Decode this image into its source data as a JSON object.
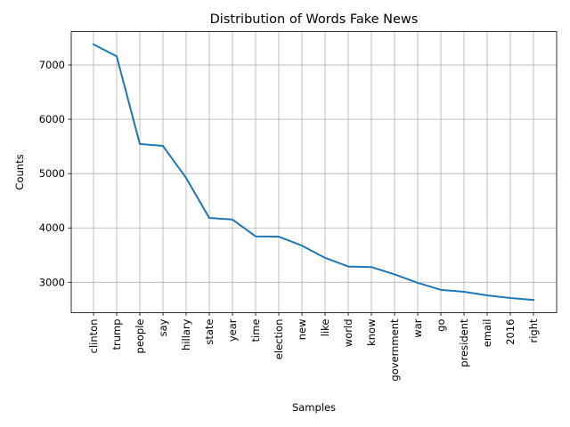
{
  "chart_data": {
    "type": "line",
    "title": "Distribution of Words Fake News",
    "xlabel": "Samples",
    "ylabel": "Counts",
    "categories": [
      "clinton",
      "trump",
      "people",
      "say",
      "hillary",
      "state",
      "year",
      "time",
      "election",
      "new",
      "like",
      "world",
      "know",
      "government",
      "war",
      "go",
      "president",
      "email",
      "2016",
      "right"
    ],
    "values": [
      7380,
      7160,
      5545,
      5510,
      4920,
      4185,
      4155,
      3845,
      3840,
      3675,
      3450,
      3290,
      3280,
      3145,
      2990,
      2860,
      2825,
      2760,
      2710,
      2675
    ],
    "ylim": [
      2440,
      7615
    ],
    "yticks": [
      3000,
      4000,
      5000,
      6000,
      7000
    ],
    "grid": true,
    "color": "#1f77b4"
  }
}
